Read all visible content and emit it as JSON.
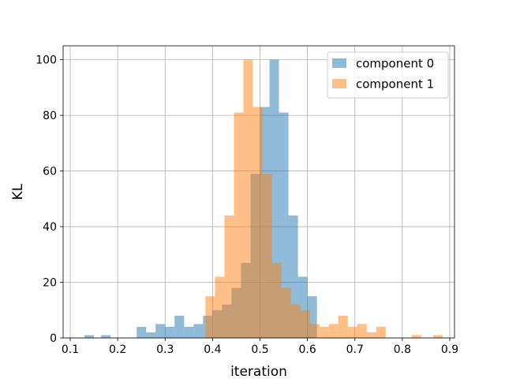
{
  "chart_data": {
    "type": "histogram",
    "title": "",
    "xlabel": "iteration",
    "ylabel": "KL",
    "xlim": [
      0.085,
      0.91
    ],
    "ylim": [
      0,
      105
    ],
    "xticks": [
      0.1,
      0.2,
      0.3,
      0.4,
      0.5,
      0.6,
      0.7,
      0.8,
      0.9
    ],
    "xtick_labels": [
      "0.1",
      "0.2",
      "0.3",
      "0.4",
      "0.5",
      "0.6",
      "0.7",
      "0.8",
      "0.9"
    ],
    "yticks": [
      0,
      20,
      40,
      60,
      80,
      100
    ],
    "ytick_labels": [
      "0",
      "20",
      "40",
      "60",
      "80",
      "100"
    ],
    "grid": true,
    "legend_position": "top-right",
    "series": [
      {
        "name": "component 0",
        "color": "#1f77b4",
        "alpha": 0.5,
        "bins": [
          [
            0.11,
            0.13,
            0
          ],
          [
            0.13,
            0.15,
            1
          ],
          [
            0.15,
            0.165,
            0
          ],
          [
            0.165,
            0.185,
            1
          ],
          [
            0.185,
            0.24,
            0
          ],
          [
            0.24,
            0.26,
            4
          ],
          [
            0.26,
            0.28,
            2
          ],
          [
            0.28,
            0.3,
            5
          ],
          [
            0.3,
            0.32,
            4
          ],
          [
            0.32,
            0.34,
            8
          ],
          [
            0.34,
            0.36,
            4
          ],
          [
            0.36,
            0.38,
            5
          ],
          [
            0.38,
            0.4,
            8
          ],
          [
            0.4,
            0.42,
            10
          ],
          [
            0.42,
            0.44,
            12
          ],
          [
            0.44,
            0.46,
            18
          ],
          [
            0.46,
            0.48,
            27
          ],
          [
            0.48,
            0.5,
            59
          ],
          [
            0.5,
            0.52,
            83
          ],
          [
            0.52,
            0.54,
            100
          ],
          [
            0.54,
            0.56,
            81
          ],
          [
            0.56,
            0.58,
            44
          ],
          [
            0.58,
            0.6,
            22
          ],
          [
            0.6,
            0.62,
            15
          ],
          [
            0.62,
            0.64,
            0
          ]
        ]
      },
      {
        "name": "component 1",
        "color": "#ff7f0e",
        "alpha": 0.5,
        "bins": [
          [
            0.385,
            0.405,
            15
          ],
          [
            0.405,
            0.425,
            22
          ],
          [
            0.425,
            0.445,
            44
          ],
          [
            0.445,
            0.465,
            81
          ],
          [
            0.465,
            0.485,
            100
          ],
          [
            0.485,
            0.505,
            83
          ],
          [
            0.505,
            0.525,
            59
          ],
          [
            0.525,
            0.545,
            27
          ],
          [
            0.545,
            0.565,
            18
          ],
          [
            0.565,
            0.585,
            12
          ],
          [
            0.585,
            0.605,
            10
          ],
          [
            0.605,
            0.625,
            5
          ],
          [
            0.625,
            0.645,
            4
          ],
          [
            0.645,
            0.665,
            5
          ],
          [
            0.665,
            0.685,
            8
          ],
          [
            0.685,
            0.705,
            4
          ],
          [
            0.705,
            0.725,
            5
          ],
          [
            0.725,
            0.745,
            2
          ],
          [
            0.745,
            0.765,
            4
          ],
          [
            0.765,
            0.82,
            0
          ],
          [
            0.82,
            0.84,
            1
          ],
          [
            0.84,
            0.865,
            0
          ],
          [
            0.865,
            0.885,
            1
          ]
        ]
      }
    ]
  }
}
